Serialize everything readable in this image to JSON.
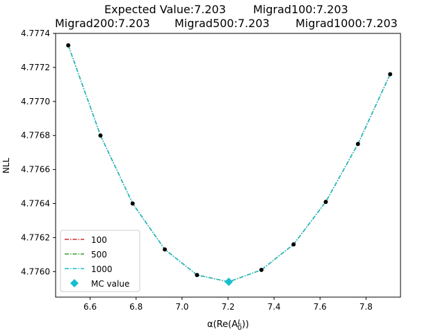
{
  "chart_data": {
    "type": "line",
    "title": {
      "line1": [
        "Expected Value:7.203",
        "Migrad100:7.203"
      ],
      "line2": [
        "Migrad200:7.203",
        "Migrad500:7.203",
        "Migrad1000:7.203"
      ]
    },
    "xlabel": "α(Re(A_0^L))",
    "ylabel": "NLL",
    "xlim": [
      6.45,
      7.95
    ],
    "ylim": [
      4.77585,
      4.7774
    ],
    "xticks": [
      "6.6",
      "6.8",
      "7.0",
      "7.2",
      "7.4",
      "7.6",
      "7.8"
    ],
    "xtick_values": [
      6.6,
      6.8,
      7.0,
      7.2,
      7.4,
      7.6,
      7.8
    ],
    "yticks": [
      "4.7760",
      "4.7762",
      "4.7764",
      "4.7766",
      "4.7768",
      "4.7770",
      "4.7772",
      "4.7774"
    ],
    "ytick_values": [
      4.776,
      4.7762,
      4.7764,
      4.7766,
      4.7768,
      4.777,
      4.7772,
      4.7774
    ],
    "x": [
      6.505,
      6.645,
      6.785,
      6.925,
      7.065,
      7.203,
      7.345,
      7.485,
      7.625,
      7.765,
      7.905
    ],
    "points": [
      4.77733,
      4.7768,
      4.7764,
      4.77613,
      4.77598,
      4.77594,
      4.77601,
      4.77616,
      4.77641,
      4.77675,
      4.77716
    ],
    "series": [
      {
        "name": "100",
        "color": "#d62728",
        "values": [
          4.77733,
          4.7768,
          4.7764,
          4.77613,
          4.77598,
          4.77594,
          4.77601,
          4.77616,
          4.77641,
          4.77675,
          4.77716
        ]
      },
      {
        "name": "500",
        "color": "#2ca02c",
        "values": [
          4.77733,
          4.7768,
          4.7764,
          4.77613,
          4.77598,
          4.77594,
          4.77601,
          4.77616,
          4.77641,
          4.77675,
          4.77716
        ]
      },
      {
        "name": "1000",
        "color": "#17becf",
        "values": [
          4.77733,
          4.7768,
          4.7764,
          4.77613,
          4.77598,
          4.77594,
          4.77601,
          4.77616,
          4.77641,
          4.77675,
          4.77716
        ]
      }
    ],
    "mc_value": {
      "name": "MC value",
      "x": 7.203,
      "y": 4.77594,
      "color": "#17becf"
    },
    "legend_position": "lower-left",
    "grid": false
  }
}
